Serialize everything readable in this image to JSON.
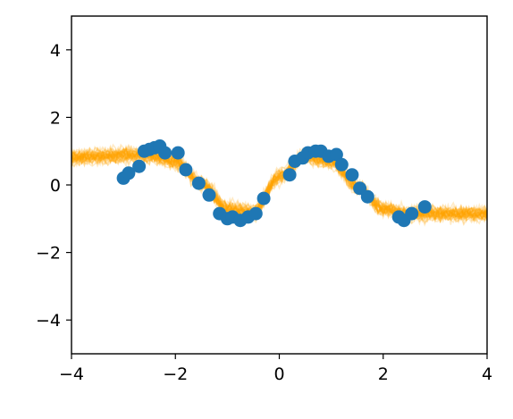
{
  "chart_data": {
    "type": "scatter",
    "xlim": [
      -4,
      4
    ],
    "ylim": [
      -5,
      5
    ],
    "x_ticks": [
      -4,
      -2,
      0,
      2,
      4
    ],
    "y_ticks": [
      -4,
      -2,
      0,
      2,
      4
    ],
    "x_tick_labels": [
      "−4",
      "−2",
      "0",
      "2",
      "4"
    ],
    "y_tick_labels": [
      "−4",
      "−2",
      "0",
      "2",
      "4"
    ],
    "grid": false,
    "legend": "none",
    "colors": {
      "points": "#1f77b4",
      "samples": "#ffa500"
    },
    "series": [
      {
        "kind": "scatter",
        "x": [
          -3.0,
          -2.9,
          -2.7,
          -2.6,
          -2.5,
          -2.4,
          -2.3,
          -2.2,
          -1.95,
          -1.8,
          -1.55,
          -1.35,
          -1.15,
          -1.0,
          -0.9,
          -0.75,
          -0.6,
          -0.45,
          -0.3,
          0.2,
          0.3,
          0.45,
          0.55,
          0.7,
          0.8,
          0.95,
          1.1,
          1.2,
          1.4,
          1.55,
          1.7,
          2.3,
          2.4,
          2.55,
          2.8
        ],
        "y": [
          0.2,
          0.35,
          0.55,
          1.0,
          1.05,
          1.1,
          1.15,
          0.95,
          0.95,
          0.45,
          0.05,
          -0.3,
          -0.85,
          -1.0,
          -0.95,
          -1.05,
          -0.95,
          -0.85,
          -0.4,
          0.3,
          0.7,
          0.8,
          0.95,
          1.0,
          1.0,
          0.85,
          0.9,
          0.6,
          0.3,
          -0.1,
          -0.35,
          -0.95,
          -1.05,
          -0.85,
          -0.65
        ]
      },
      {
        "kind": "samples",
        "x": [
          -4.0,
          -3.5,
          -3.0,
          -2.5,
          -2.0,
          -1.5,
          -1.0,
          -0.5,
          0.0,
          0.5,
          1.0,
          1.5,
          2.0,
          2.5,
          3.0,
          3.5,
          4.0
        ],
        "y": [
          0.8,
          0.85,
          0.9,
          0.9,
          0.7,
          0.05,
          -0.7,
          -0.8,
          0.25,
          0.85,
          0.7,
          -0.05,
          -0.7,
          -0.85,
          -0.85,
          -0.85,
          -0.85
        ],
        "count": 40,
        "noise": 0.25,
        "opacity": 0.22
      }
    ]
  }
}
